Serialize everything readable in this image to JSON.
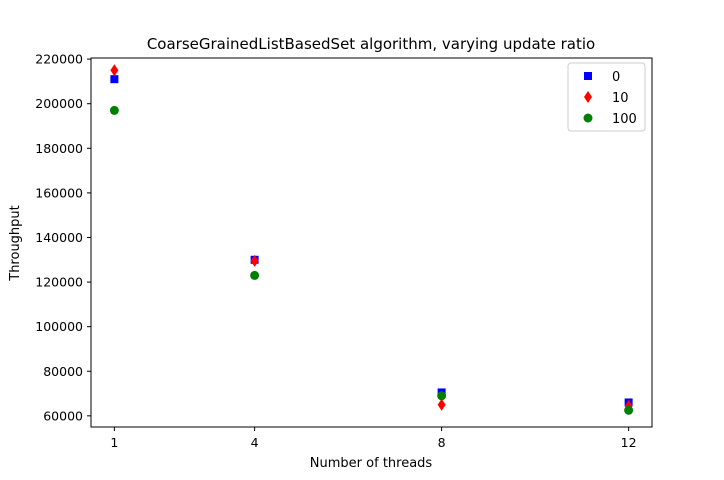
{
  "chart_data": {
    "type": "scatter",
    "title": "CoarseGrainedListBasedSet algorithm, varying update ratio",
    "xlabel": "Number of threads",
    "ylabel": "Throughput",
    "x": [
      1,
      4,
      8,
      12
    ],
    "x_ticks": [
      "1",
      "4",
      "8",
      "12"
    ],
    "y_ticks": [
      "60000",
      "80000",
      "100000",
      "120000",
      "140000",
      "160000",
      "180000",
      "200000",
      "220000"
    ],
    "xlim": [
      0.5,
      12.5
    ],
    "ylim": [
      55000,
      220500
    ],
    "grid": false,
    "legend_position": "top-right",
    "series": [
      {
        "name": "0",
        "marker": "square",
        "color": "#0000ff",
        "values": [
          211000,
          130000,
          70500,
          66000
        ]
      },
      {
        "name": "10",
        "marker": "diamond",
        "color": "#ff0000",
        "values": [
          215000,
          129500,
          65000,
          64500
        ]
      },
      {
        "name": "100",
        "marker": "circle",
        "color": "#008000",
        "values": [
          197000,
          123000,
          69000,
          62500
        ]
      }
    ]
  }
}
